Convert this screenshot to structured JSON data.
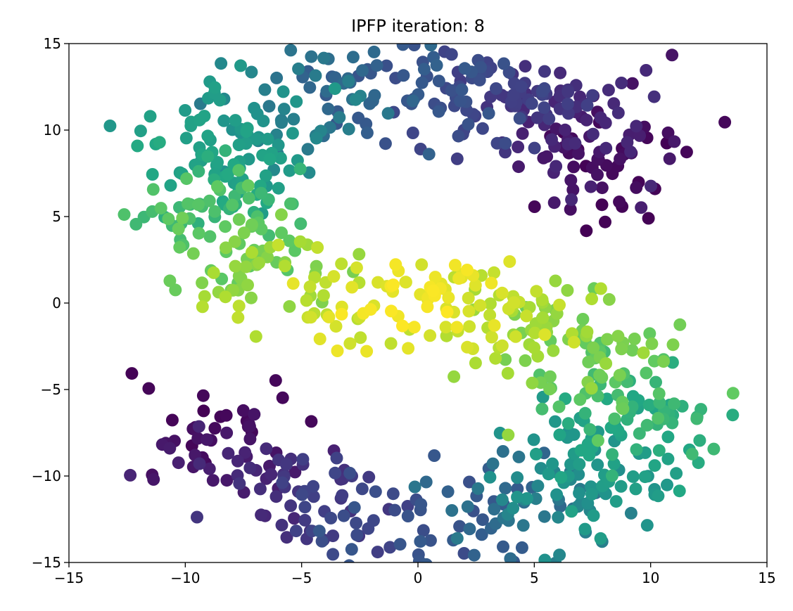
{
  "chart_data": {
    "type": "scatter",
    "title": "IPFP iteration: 8",
    "xlabel": "",
    "ylabel": "",
    "xlim": [
      -15,
      15
    ],
    "ylim": [
      -15,
      15
    ],
    "xticks": [
      -15,
      -10,
      -5,
      0,
      5,
      10,
      15
    ],
    "yticks": [
      -15,
      -10,
      -5,
      0,
      5,
      10,
      15
    ],
    "grid": false,
    "colormap": "viridis",
    "color_encoding": "bright yellow near the center of the S, dark purple at the top and bottom arcs",
    "point_count_estimate": 1000
  }
}
